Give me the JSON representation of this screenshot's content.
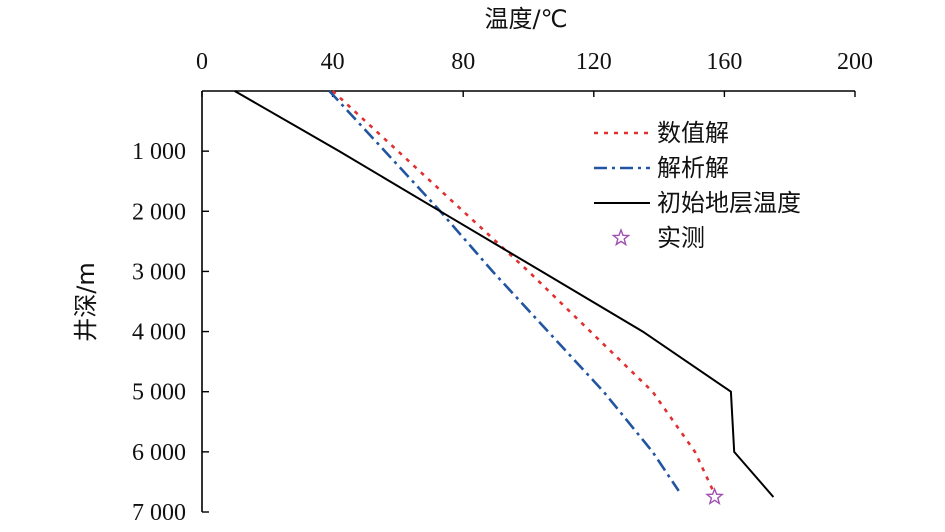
{
  "chart_data": {
    "type": "line",
    "xlabel": "温度/℃",
    "ylabel": "井深/m",
    "x_axis_position": "top",
    "y_axis_inverted": true,
    "xlim": [
      0,
      200
    ],
    "ylim": [
      0,
      7000
    ],
    "x_ticks": [
      0,
      40,
      80,
      120,
      160,
      200
    ],
    "x_tick_labels": [
      "0",
      "40",
      "80",
      "120",
      "160",
      "200"
    ],
    "y_ticks": [
      1000,
      2000,
      3000,
      4000,
      5000,
      6000,
      7000
    ],
    "y_tick_labels": [
      "1 000",
      "2 000",
      "3 000",
      "4 000",
      "5 000",
      "6 000",
      "7 000"
    ],
    "grid": false,
    "legend_position": "top-right",
    "series": [
      {
        "name": "数值解",
        "style": "dotted",
        "color": "#e03030",
        "points": [
          [
            40,
            0
          ],
          [
            60,
            1000
          ],
          [
            80,
            2000
          ],
          [
            100,
            3000
          ],
          [
            119,
            4000
          ],
          [
            138,
            5000
          ],
          [
            151,
            6000
          ],
          [
            157,
            6700
          ]
        ]
      },
      {
        "name": "解析解",
        "style": "dashdot",
        "color": "#2255a0",
        "points": [
          [
            39,
            0
          ],
          [
            56,
            1000
          ],
          [
            73,
            2000
          ],
          [
            89,
            3000
          ],
          [
            106,
            4000
          ],
          [
            123,
            5000
          ],
          [
            138,
            6000
          ],
          [
            146,
            6650
          ]
        ]
      },
      {
        "name": "初始地层温度",
        "style": "solid",
        "color": "#000000",
        "points": [
          [
            10,
            0
          ],
          [
            42,
            1000
          ],
          [
            73,
            2000
          ],
          [
            104,
            3000
          ],
          [
            135,
            4000
          ],
          [
            162,
            5000
          ],
          [
            163,
            6000
          ],
          [
            175,
            6750
          ]
        ]
      },
      {
        "name": "实测",
        "style": "marker",
        "marker": "star",
        "color": "#a050b0",
        "points": [
          [
            157,
            6750
          ]
        ]
      }
    ]
  }
}
